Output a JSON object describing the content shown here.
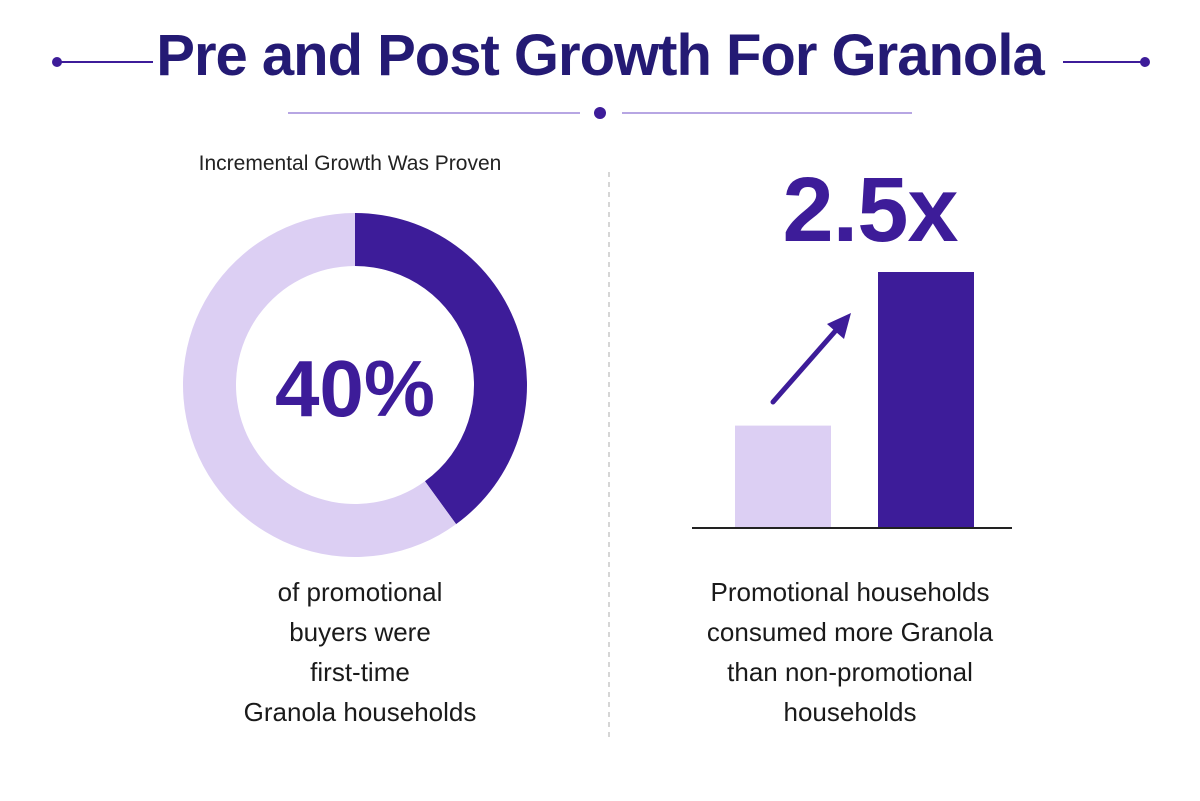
{
  "title": "Pre and Post Growth For Granola",
  "colors": {
    "dark": "#3d1c99",
    "light": "#dccff3",
    "title": "#241a74"
  },
  "left_panel": {
    "subtitle": "Incremental Growth Was Proven",
    "big_number": "40%",
    "caption_lines": [
      "of promotional",
      "buyers were",
      "first-time",
      "Granola households"
    ]
  },
  "right_panel": {
    "big_number": "2.5x",
    "caption_lines": [
      "Promotional households",
      "consumed more Granola",
      "than non-promotional",
      "households"
    ]
  },
  "chart_data": [
    {
      "type": "pie",
      "labels": [
        "",
        ""
      ],
      "values": [
        40,
        60
      ],
      "title": "Incremental Growth Was Proven"
    },
    {
      "type": "bar",
      "categories": [
        "",
        ""
      ],
      "values": [
        1,
        2.5
      ],
      "title": "2.5x",
      "xlabel": "",
      "ylabel": ""
    }
  ]
}
